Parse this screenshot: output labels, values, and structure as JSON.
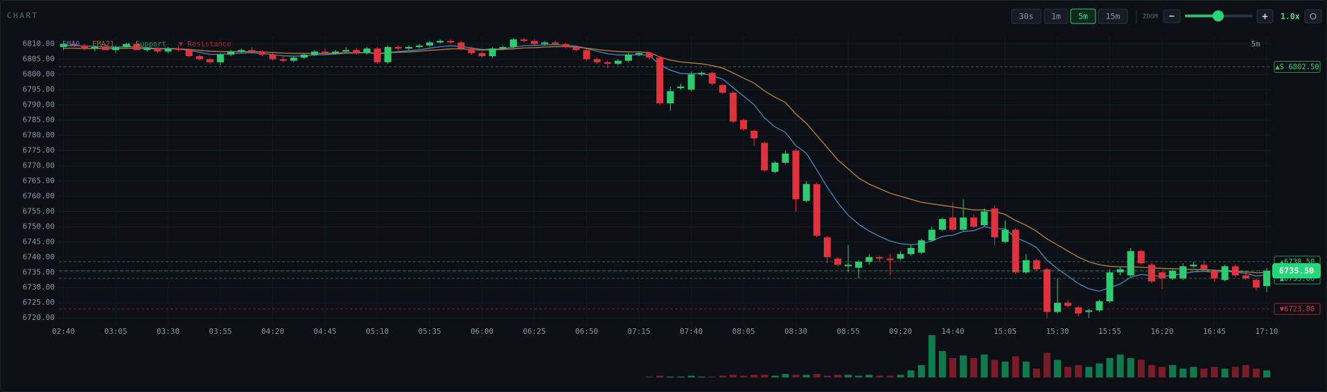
{
  "toolbar": {
    "title": "CHART",
    "intervals": [
      "30s",
      "1m",
      "5m",
      "15m"
    ],
    "active_interval": "5m",
    "zoom_label": "ZOOM",
    "zoom_out": "−",
    "zoom_in": "+",
    "zoom_value": "1.0x"
  },
  "chart_data": {
    "type": "candlestick",
    "timeframe_label": "5m",
    "up_color": "#2ecc71",
    "down_color": "#e0323c",
    "categories": [
      "02:40",
      null,
      null,
      null,
      null,
      "03:05",
      null,
      null,
      null,
      null,
      "03:30",
      null,
      null,
      null,
      null,
      "03:55",
      null,
      null,
      null,
      null,
      "04:20",
      null,
      null,
      null,
      null,
      "04:45",
      null,
      null,
      null,
      null,
      "05:10",
      null,
      null,
      null,
      null,
      "05:35",
      null,
      null,
      null,
      null,
      "06:00",
      null,
      null,
      null,
      null,
      "06:25",
      null,
      null,
      null,
      null,
      "06:50",
      null,
      null,
      null,
      null,
      "07:15",
      null,
      null,
      null,
      null,
      "07:40",
      null,
      null,
      null,
      null,
      "08:05",
      null,
      null,
      null,
      null,
      "08:30",
      null,
      null,
      null,
      null,
      "08:55",
      null,
      null,
      null,
      null,
      "09:20",
      null,
      null,
      null,
      null,
      "14:40",
      null,
      null,
      null,
      null,
      "15:05",
      null,
      null,
      null,
      null,
      "15:30",
      null,
      null,
      null,
      null,
      "15:55",
      null,
      null,
      null,
      null,
      "16:20",
      null,
      null,
      null,
      null,
      "16:45",
      null,
      null,
      null,
      null,
      "17:10"
    ],
    "open": [
      6809,
      6810,
      6809.5,
      6808.5,
      6809,
      6808,
      6809,
      6810,
      6808,
      6808.5,
      6807.5,
      6808.5,
      6808,
      6806,
      6805,
      6804,
      6806.5,
      6807.5,
      6808,
      6807.5,
      6806.5,
      6805,
      6804.5,
      6805.5,
      6806.5,
      6807.5,
      6807,
      6807.5,
      6808,
      6807,
      6808.5,
      6804,
      6809,
      6808.5,
      6809,
      6809.5,
      6810.5,
      6811,
      6810.5,
      6808.5,
      6807,
      6806,
      6808.5,
      6809,
      6811.5,
      6811,
      6810,
      6810.5,
      6810,
      6809,
      6808,
      6805,
      6804,
      6803.5,
      6804.5,
      6806.5,
      6807,
      6805.5,
      6790.5,
      6795.5,
      6795,
      6800,
      6800.5,
      6796.5,
      6794,
      6785,
      6781.5,
      6777.5,
      6768,
      6771,
      6775,
      6758.5,
      6764,
      6746.5,
      6739.5,
      6737,
      6736.5,
      6738.5,
      6740,
      6739.5,
      6739.5,
      6741,
      6741.5,
      6745.5,
      6749,
      6753,
      6749,
      6753,
      6750.5,
      6756,
      6745,
      6749,
      6735,
      6739,
      6736,
      6722,
      6725,
      6723.5,
      6722,
      6722.5,
      6725.5,
      6735,
      6734,
      6742,
      6737.5,
      6735,
      6733,
      6733,
      6737,
      6737.5,
      6735.5,
      6732.5,
      6737,
      6734,
      6732.5,
      6730.5
    ],
    "high": [
      6811,
      6811,
      6810,
      6809.5,
      6810,
      6809.5,
      6810.5,
      6811,
      6809,
      6809,
      6809,
      6809.5,
      6808.5,
      6806.5,
      6805.5,
      6807,
      6808,
      6808.5,
      6809,
      6808,
      6807,
      6806,
      6806,
      6807,
      6808,
      6808.5,
      6808,
      6809,
      6808.5,
      6809,
      6809,
      6809.5,
      6809.5,
      6809.5,
      6810,
      6811,
      6811.5,
      6811.5,
      6811,
      6809,
      6807.5,
      6809,
      6809.5,
      6812,
      6812,
      6811.5,
      6811,
      6811,
      6810.5,
      6809.5,
      6808.5,
      6805.5,
      6804.5,
      6805,
      6807,
      6807.5,
      6807.5,
      6806,
      6796,
      6797,
      6801,
      6801,
      6801,
      6797,
      6794.5,
      6785.5,
      6782,
      6778,
      6771.5,
      6775,
      6775.5,
      6765,
      6764.5,
      6747,
      6740,
      6744,
      6739,
      6741,
      6740.5,
      6741,
      6742,
      6744,
      6746,
      6750,
      6753,
      6758,
      6759,
      6754,
      6756,
      6757,
      6752,
      6749.5,
      6741,
      6739.5,
      6736.5,
      6733,
      6726,
      6724,
      6723,
      6726,
      6736,
      6737,
      6743,
      6742.5,
      6738,
      6735.5,
      6736,
      6738,
      6738.5,
      6739,
      6736,
      6737.5,
      6737.5,
      6735,
      6733,
      6736.5
    ],
    "low": [
      6808,
      6809,
      6808,
      6807.5,
      6808,
      6807,
      6808.5,
      6808,
      6807.5,
      6807,
      6807,
      6807.5,
      6805.5,
      6804.5,
      6803.5,
      6803,
      6806,
      6807,
      6807,
      6806,
      6804.5,
      6804,
      6804,
      6805,
      6806,
      6806.5,
      6806.5,
      6807,
      6806.5,
      6806.5,
      6803.5,
      6803.5,
      6808,
      6808,
      6808.5,
      6809,
      6810,
      6810,
      6808,
      6806.5,
      6805.5,
      6805.5,
      6808,
      6808.5,
      6810.5,
      6809.5,
      6809.5,
      6809.5,
      6808.5,
      6807.5,
      6804.5,
      6803.5,
      6802,
      6803,
      6804,
      6806,
      6805,
      6790,
      6788,
      6795,
      6794.5,
      6799.5,
      6796.5,
      6793.5,
      6784,
      6781.5,
      6776.5,
      6768,
      6767.5,
      6770.5,
      6755,
      6758,
      6746.5,
      6738,
      6737,
      6735,
      6733,
      6737.5,
      6738.5,
      6734,
      6739,
      6740.5,
      6741,
      6745,
      6748.5,
      6748.5,
      6748.5,
      6749.5,
      6750,
      6744,
      6744.5,
      6734.5,
      6734.5,
      6735.5,
      6720,
      6721.5,
      6723.5,
      6720.5,
      6720,
      6722,
      6725,
      6734,
      6733.5,
      6737.5,
      6731.5,
      6729.5,
      6732.5,
      6732.5,
      6736.5,
      6735.5,
      6732,
      6732,
      6733.5,
      6732.5,
      6729,
      6728.5
    ],
    "close": [
      6810,
      6809.5,
      6808.5,
      6809,
      6808,
      6809,
      6810,
      6808,
      6808.5,
      6807.5,
      6808.5,
      6808,
      6806,
      6805,
      6804,
      6806.5,
      6807.5,
      6808,
      6807.5,
      6806.5,
      6805,
      6804.5,
      6805.5,
      6806.5,
      6807.5,
      6807,
      6807.5,
      6808,
      6807,
      6808.5,
      6804,
      6809,
      6808.5,
      6809,
      6809.5,
      6810.5,
      6811,
      6810.5,
      6808.5,
      6807,
      6806,
      6808.5,
      6809,
      6811.5,
      6811,
      6810,
      6810.5,
      6810,
      6809,
      6808,
      6805,
      6804,
      6803.5,
      6804.5,
      6806.5,
      6807,
      6805.5,
      6790.5,
      6794.5,
      6796,
      6800,
      6800.5,
      6797,
      6794,
      6784.5,
      6782,
      6779,
      6768.5,
      6771,
      6774,
      6759,
      6764,
      6747,
      6740,
      6737.5,
      6737.5,
      6738.5,
      6740,
      6739.5,
      6739,
      6741,
      6743,
      6745.5,
      6749,
      6752.5,
      6749,
      6753,
      6750,
      6755,
      6746.5,
      6749,
      6735,
      6739,
      6736,
      6722,
      6725,
      6724,
      6721.5,
      6722.5,
      6725.5,
      6735,
      6736,
      6742,
      6738,
      6732,
      6733,
      6735.5,
      6737,
      6737.5,
      6736,
      6733,
      6737,
      6734,
      6733,
      6730,
      6735.5
    ],
    "series": [
      {
        "name": "EMA9",
        "color": "#4a8fc4",
        "values": [
          6809.5,
          6809.5,
          6809.3,
          6809.2,
          6809,
          6808.9,
          6809.1,
          6809,
          6808.8,
          6808.5,
          6808.5,
          6808.4,
          6807.9,
          6807.3,
          6806.6,
          6806.6,
          6806.8,
          6807,
          6807.1,
          6806.9,
          6806.5,
          6806.1,
          6806,
          6806.1,
          6806.4,
          6806.5,
          6806.7,
          6807,
          6807,
          6807.3,
          6806.7,
          6807.2,
          6807.5,
          6807.8,
          6808.1,
          6808.6,
          6809.1,
          6809.4,
          6809.2,
          6808.7,
          6808.2,
          6808.3,
          6808.4,
          6809,
          6809.4,
          6809.5,
          6809.7,
          6809.8,
          6809.6,
          6809.3,
          6808.5,
          6807.6,
          6806.8,
          6806.4,
          6806.4,
          6806.5,
          6806.3,
          6803.1,
          6801.4,
          6800.3,
          6800.2,
          6800.3,
          6799.6,
          6798.5,
          6795.7,
          6792.9,
          6790.1,
          6785.7,
          6782.8,
          6781,
          6776.6,
          6774.1,
          6768.7,
          6763,
          6757.9,
          6753.8,
          6750.8,
          6748.6,
          6746.8,
          6745.3,
          6744.4,
          6744.1,
          6744.4,
          6745.3,
          6746.8,
          6747.2,
          6748.4,
          6748.7,
          6750,
          6749.3,
          6749.3,
          6746.4,
          6745,
          6743.2,
          6739,
          6736.2,
          6733.8,
          6731.3,
          6729.6,
          6728.8,
          6730,
          6731.2,
          6733.4,
          6734.3,
          6733.9,
          6733.7,
          6734,
          6734.6,
          6735.2,
          6735.4,
          6735,
          6735.4,
          6735.1,
          6734.7,
          6733.8,
          6734.1
        ]
      },
      {
        "name": "EMA21",
        "color": "#c08a3a",
        "values": [
          6808.6,
          6808.6,
          6808.5,
          6808.5,
          6808.5,
          6808.5,
          6808.6,
          6808.5,
          6808.5,
          6808.4,
          6808.4,
          6808.4,
          6808.2,
          6807.9,
          6807.6,
          6807.5,
          6807.5,
          6807.5,
          6807.5,
          6807.4,
          6807.2,
          6807,
          6806.9,
          6806.9,
          6806.9,
          6806.9,
          6807,
          6807.1,
          6807.1,
          6807.2,
          6806.9,
          6807.1,
          6807.3,
          6807.4,
          6807.6,
          6807.9,
          6808.1,
          6808.4,
          6808.4,
          6808.2,
          6808,
          6808.1,
          6808.2,
          6808.4,
          6808.7,
          6808.8,
          6809,
          6809.1,
          6809.1,
          6809,
          6808.6,
          6808.2,
          6807.8,
          6807.5,
          6807.4,
          6807.4,
          6807.2,
          6805.7,
          6804.7,
          6804.1,
          6803.8,
          6803.5,
          6802.9,
          6802.1,
          6800.5,
          6798.8,
          6797.2,
          6794.6,
          6792.5,
          6790.8,
          6787,
          6784,
          6780,
          6776,
          6772,
          6769,
          6766,
          6764,
          6762.5,
          6761,
          6760,
          6759,
          6758,
          6757.5,
          6757,
          6756.5,
          6756,
          6755.5,
          6755.5,
          6755,
          6754,
          6752,
          6750.5,
          6748.5,
          6746,
          6744,
          6742,
          6740,
          6738.5,
          6737.5,
          6737,
          6736.8,
          6736.8,
          6736.7,
          6736.5,
          6736.3,
          6736.2,
          6736.1,
          6736,
          6735.9,
          6735.7,
          6735.6,
          6735.4,
          6735.2,
          6734.9,
          6734.9
        ]
      }
    ],
    "level_legend": [
      {
        "name": "▲ Support",
        "color": "#2ecc71"
      },
      {
        "name": "▼ Resistance",
        "color": "#e0323c"
      }
    ],
    "levels": [
      {
        "value": 6802.5,
        "label": "▲S 6802.50",
        "color": "#2ecc71"
      },
      {
        "value": 6738.5,
        "label": "▲6738.50",
        "color": "#2ecc71"
      },
      {
        "value": 6733,
        "label": "▲6733.00",
        "color": "#2ecc71"
      },
      {
        "value": 6723,
        "label": "▼6723.00",
        "color": "#e0323c"
      }
    ],
    "last_price": {
      "value": 6735.5,
      "label": "6735.50",
      "color": "#22d67a"
    },
    "volume": {
      "up_color": "#0f7a4c",
      "down_color": "#7a1c28",
      "values": [
        0,
        0,
        0,
        0,
        0,
        0,
        0,
        0,
        0,
        0,
        0,
        0,
        0,
        0,
        0,
        0,
        0,
        0,
        0,
        0,
        0,
        0,
        0,
        0,
        0,
        0,
        0,
        0,
        0,
        0,
        0,
        0,
        0,
        0,
        0,
        0,
        0,
        0,
        0,
        0,
        0,
        0,
        0,
        0,
        0,
        0,
        0,
        0,
        0,
        0,
        0,
        0,
        0,
        0,
        0,
        0,
        1,
        2,
        1,
        1,
        2,
        1,
        1,
        2,
        3,
        2,
        3,
        3,
        2,
        4,
        3,
        3,
        4,
        2,
        3,
        3,
        2,
        3,
        2,
        2,
        3,
        8,
        14,
        48,
        30,
        22,
        25,
        22,
        26,
        20,
        18,
        24,
        18,
        10,
        28,
        20,
        12,
        14,
        12,
        16,
        22,
        26,
        22,
        20,
        14,
        12,
        14,
        10,
        12,
        10,
        12,
        10,
        12,
        14,
        10,
        8
      ]
    },
    "ylim": [
      6717.5,
      6812.5
    ],
    "yticks": [
      {
        "value": 6720,
        "label": "6720.00"
      },
      {
        "value": 6725,
        "label": "6725.00"
      },
      {
        "value": 6730,
        "label": "6730.00"
      },
      {
        "value": 6735,
        "label": "6735.00"
      },
      {
        "value": 6740,
        "label": "6740.00"
      },
      {
        "value": 6745,
        "label": "6745.00"
      },
      {
        "value": 6750,
        "label": "6750.00"
      },
      {
        "value": 6755,
        "label": "6755.00"
      },
      {
        "value": 6760,
        "label": "6760.00"
      },
      {
        "value": 6765,
        "label": "6765.00"
      },
      {
        "value": 6770,
        "label": "6770.00"
      },
      {
        "value": 6775,
        "label": "6775.00"
      },
      {
        "value": 6780,
        "label": "6780.00"
      },
      {
        "value": 6785,
        "label": "6785.00"
      },
      {
        "value": 6790,
        "label": "6790.00"
      },
      {
        "value": 6795,
        "label": "6795.00"
      },
      {
        "value": 6800,
        "label": "6800.00"
      },
      {
        "value": 6805,
        "label": "6805.00"
      },
      {
        "value": 6810,
        "label": "6810.00"
      }
    ],
    "grid": true
  }
}
